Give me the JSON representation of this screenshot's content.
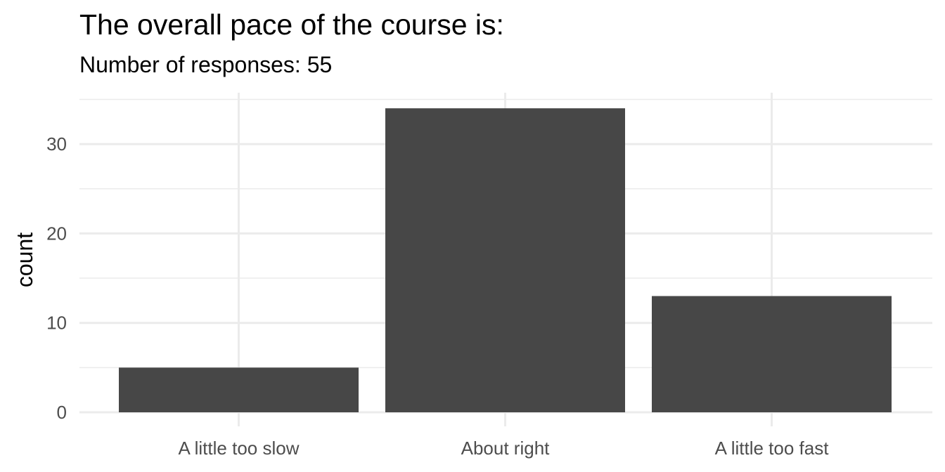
{
  "chart_data": {
    "type": "bar",
    "title": "The overall pace of the course is:",
    "subtitle": "Number of responses: 55",
    "xlabel": "",
    "ylabel": "count",
    "categories": [
      "A little too slow",
      "About right",
      "A little too fast"
    ],
    "values": [
      5,
      34,
      13
    ],
    "ylim": [
      0,
      35
    ],
    "yticks": [
      0,
      10,
      20,
      30
    ],
    "grid": true,
    "legend": "none",
    "colors": {
      "bar": "#474747",
      "grid": "#ebebeb",
      "background": "#ffffff"
    }
  }
}
